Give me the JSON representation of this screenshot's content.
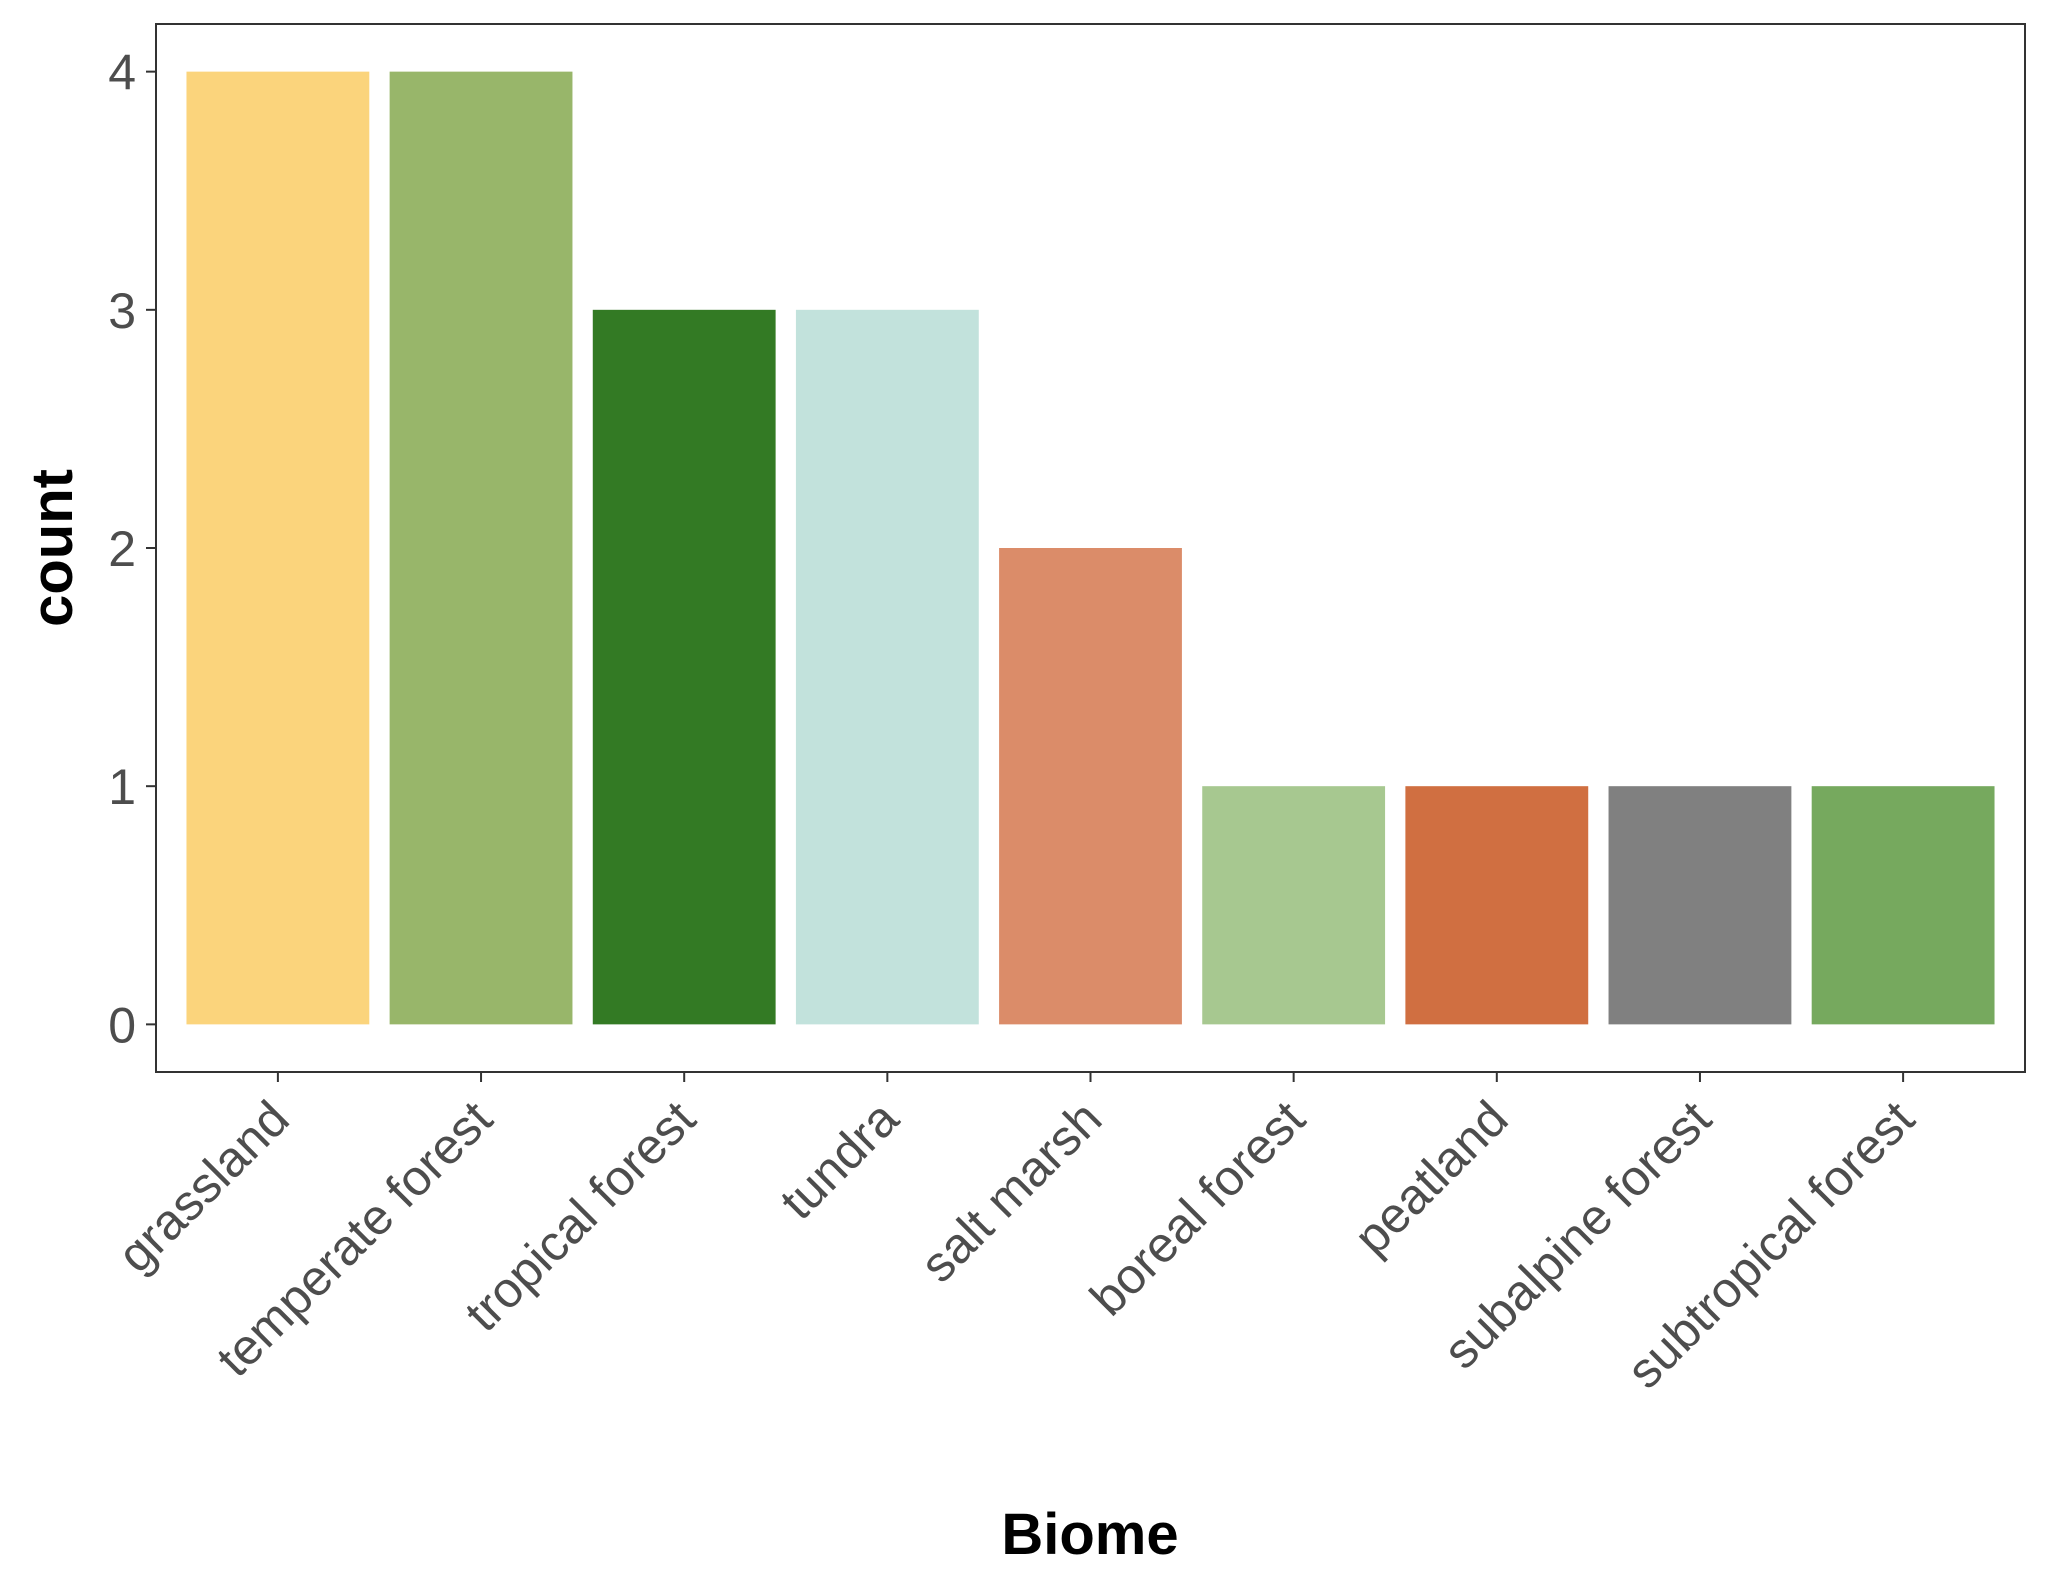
{
  "chart_data": {
    "type": "bar",
    "title": "",
    "xlabel": "Biome",
    "ylabel": "count",
    "ylim": [
      -0.2,
      4.2
    ],
    "yticks": [
      0,
      1,
      2,
      3,
      4
    ],
    "grid": false,
    "legend": "none",
    "categories": [
      "grassland",
      "temperate forest",
      "tropical forest",
      "tundra",
      "salt marsh",
      "boreal forest",
      "peatland",
      "subalpine forest",
      "subtropical forest"
    ],
    "values": [
      4,
      4,
      3,
      3,
      2,
      1,
      1,
      1,
      1
    ],
    "colors": [
      "#FBD47C",
      "#98B66A",
      "#337A24",
      "#C2E2DC",
      "#DB8C69",
      "#A7C890",
      "#D06F41",
      "#808080",
      "#76A95E"
    ]
  }
}
